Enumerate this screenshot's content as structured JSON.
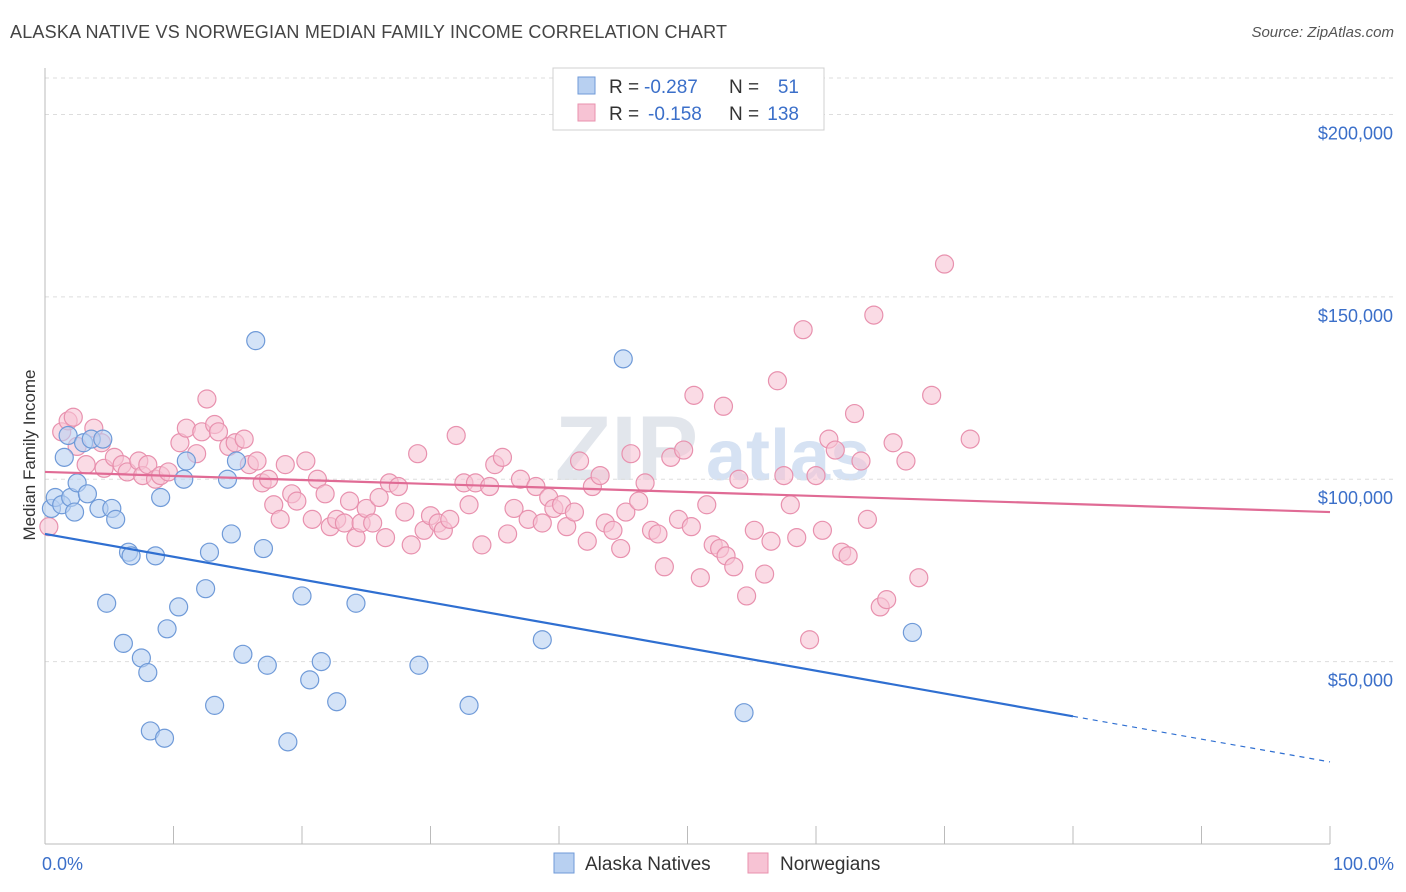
{
  "title": "ALASKA NATIVE VS NORWEGIAN MEDIAN FAMILY INCOME CORRELATION CHART",
  "source": "Source: ZipAtlas.com",
  "watermark": {
    "zip": "ZIP",
    "atlas": "atlas"
  },
  "colors": {
    "blue_fill": "#b8d0f1",
    "blue_stroke": "#6f9ad8",
    "blue_line": "#2f6fd1",
    "pink_fill": "#f7c3d4",
    "pink_stroke": "#e891ae",
    "pink_line": "#e06b95",
    "tick_text": "#3b6fc9",
    "grid": "#dddddd"
  },
  "legend": {
    "rows": [
      {
        "r_label": "R =",
        "r_value": "-0.287",
        "n_label": "N =",
        "n_value": "51"
      },
      {
        "r_label": "R =",
        "r_value": "-0.158",
        "n_label": "N =",
        "n_value": "138"
      }
    ]
  },
  "chart_data": {
    "type": "scatter",
    "title": "ALASKA NATIVE VS NORWEGIAN MEDIAN FAMILY INCOME CORRELATION CHART",
    "xlabel": "",
    "ylabel": "Median Family Income",
    "xlim": [
      0,
      100
    ],
    "ylim": [
      0,
      210000
    ],
    "x_tick_labels": [
      "0.0%",
      "100.0%"
    ],
    "y_ticks": [
      {
        "value": 50000,
        "label": "$50,000"
      },
      {
        "value": 100000,
        "label": "$100,000"
      },
      {
        "value": 150000,
        "label": "$150,000"
      },
      {
        "value": 200000,
        "label": "$200,000"
      }
    ],
    "series": [
      {
        "name": "Alaska Natives",
        "r": -0.287,
        "n": 51,
        "trend": {
          "x0": 0,
          "y0": 85000,
          "x1": 80,
          "y1": 35000,
          "dash_to_x": 100,
          "dash_to_y": 22500
        },
        "points": [
          [
            0.5,
            92000
          ],
          [
            0.8,
            95000
          ],
          [
            1.3,
            93000
          ],
          [
            1.5,
            106000
          ],
          [
            1.8,
            112000
          ],
          [
            2.0,
            95000
          ],
          [
            2.3,
            91000
          ],
          [
            2.5,
            99000
          ],
          [
            3.0,
            110000
          ],
          [
            3.3,
            96000
          ],
          [
            3.6,
            111000
          ],
          [
            4.2,
            92000
          ],
          [
            4.8,
            66000
          ],
          [
            5.2,
            92000
          ],
          [
            5.5,
            89000
          ],
          [
            6.1,
            55000
          ],
          [
            6.5,
            80000
          ],
          [
            6.7,
            79000
          ],
          [
            7.5,
            51000
          ],
          [
            8.0,
            47000
          ],
          [
            8.2,
            31000
          ],
          [
            8.6,
            79000
          ],
          [
            9.0,
            95000
          ],
          [
            9.3,
            29000
          ],
          [
            9.5,
            59000
          ],
          [
            10.4,
            65000
          ],
          [
            10.8,
            100000
          ],
          [
            11.0,
            105000
          ],
          [
            12.8,
            80000
          ],
          [
            12.5,
            70000
          ],
          [
            13.2,
            38000
          ],
          [
            14.2,
            100000
          ],
          [
            14.5,
            85000
          ],
          [
            14.9,
            105000
          ],
          [
            15.4,
            52000
          ],
          [
            16.4,
            138000
          ],
          [
            17.0,
            81000
          ],
          [
            17.3,
            49000
          ],
          [
            18.9,
            28000
          ],
          [
            20.0,
            68000
          ],
          [
            20.6,
            45000
          ],
          [
            21.5,
            50000
          ],
          [
            22.7,
            39000
          ],
          [
            24.2,
            66000
          ],
          [
            29.1,
            49000
          ],
          [
            33.0,
            38000
          ],
          [
            38.7,
            56000
          ],
          [
            45.0,
            133000
          ],
          [
            67.5,
            58000
          ],
          [
            54.4,
            36000
          ],
          [
            4.5,
            111000
          ]
        ]
      },
      {
        "name": "Norwegians",
        "r": -0.158,
        "n": 138,
        "trend": {
          "x0": 0,
          "y0": 102000,
          "x1": 100,
          "y1": 91000
        },
        "points": [
          [
            0.3,
            87000
          ],
          [
            1.3,
            113000
          ],
          [
            1.8,
            116000
          ],
          [
            2.2,
            117000
          ],
          [
            2.5,
            109000
          ],
          [
            3.2,
            104000
          ],
          [
            3.8,
            114000
          ],
          [
            4.4,
            110000
          ],
          [
            4.6,
            103000
          ],
          [
            5.4,
            106000
          ],
          [
            6.0,
            104000
          ],
          [
            6.4,
            102000
          ],
          [
            7.3,
            105000
          ],
          [
            7.6,
            101000
          ],
          [
            8.0,
            104000
          ],
          [
            8.6,
            100000
          ],
          [
            9.0,
            101000
          ],
          [
            9.6,
            102000
          ],
          [
            10.5,
            110000
          ],
          [
            11.0,
            114000
          ],
          [
            11.8,
            107000
          ],
          [
            12.2,
            113000
          ],
          [
            12.6,
            122000
          ],
          [
            13.2,
            115000
          ],
          [
            13.5,
            113000
          ],
          [
            14.3,
            109000
          ],
          [
            14.8,
            110000
          ],
          [
            15.5,
            111000
          ],
          [
            15.9,
            104000
          ],
          [
            16.5,
            105000
          ],
          [
            16.9,
            99000
          ],
          [
            17.4,
            100000
          ],
          [
            17.8,
            93000
          ],
          [
            18.3,
            89000
          ],
          [
            18.7,
            104000
          ],
          [
            19.2,
            96000
          ],
          [
            19.6,
            94000
          ],
          [
            20.3,
            105000
          ],
          [
            20.8,
            89000
          ],
          [
            21.2,
            100000
          ],
          [
            21.8,
            96000
          ],
          [
            22.2,
            87000
          ],
          [
            22.7,
            89000
          ],
          [
            23.3,
            88000
          ],
          [
            23.7,
            94000
          ],
          [
            24.2,
            84000
          ],
          [
            24.6,
            88000
          ],
          [
            25.0,
            92000
          ],
          [
            25.5,
            88000
          ],
          [
            26.0,
            95000
          ],
          [
            26.5,
            84000
          ],
          [
            26.8,
            99000
          ],
          [
            27.5,
            98000
          ],
          [
            28.0,
            91000
          ],
          [
            28.5,
            82000
          ],
          [
            29.0,
            107000
          ],
          [
            29.5,
            86000
          ],
          [
            30.0,
            90000
          ],
          [
            30.6,
            88000
          ],
          [
            31.0,
            86000
          ],
          [
            31.5,
            89000
          ],
          [
            32.0,
            112000
          ],
          [
            32.6,
            99000
          ],
          [
            33.0,
            93000
          ],
          [
            33.5,
            99000
          ],
          [
            34.0,
            82000
          ],
          [
            34.6,
            98000
          ],
          [
            35.0,
            104000
          ],
          [
            35.6,
            106000
          ],
          [
            36.0,
            85000
          ],
          [
            36.5,
            92000
          ],
          [
            37.0,
            100000
          ],
          [
            37.6,
            89000
          ],
          [
            38.2,
            98000
          ],
          [
            38.7,
            88000
          ],
          [
            39.2,
            95000
          ],
          [
            39.6,
            92000
          ],
          [
            40.2,
            93000
          ],
          [
            40.6,
            87000
          ],
          [
            41.2,
            91000
          ],
          [
            41.6,
            105000
          ],
          [
            42.2,
            83000
          ],
          [
            42.6,
            98000
          ],
          [
            43.2,
            101000
          ],
          [
            43.6,
            88000
          ],
          [
            44.2,
            86000
          ],
          [
            44.8,
            81000
          ],
          [
            45.2,
            91000
          ],
          [
            45.6,
            107000
          ],
          [
            46.2,
            94000
          ],
          [
            46.7,
            99000
          ],
          [
            47.2,
            86000
          ],
          [
            47.7,
            85000
          ],
          [
            48.2,
            76000
          ],
          [
            48.7,
            106000
          ],
          [
            49.3,
            89000
          ],
          [
            49.7,
            108000
          ],
          [
            50.3,
            87000
          ],
          [
            51.0,
            73000
          ],
          [
            51.5,
            93000
          ],
          [
            52.0,
            82000
          ],
          [
            52.5,
            81000
          ],
          [
            53.0,
            79000
          ],
          [
            53.6,
            76000
          ],
          [
            54.0,
            100000
          ],
          [
            54.6,
            68000
          ],
          [
            55.2,
            86000
          ],
          [
            56.0,
            74000
          ],
          [
            56.5,
            83000
          ],
          [
            57.0,
            127000
          ],
          [
            57.5,
            101000
          ],
          [
            58.0,
            93000
          ],
          [
            58.5,
            84000
          ],
          [
            59.0,
            141000
          ],
          [
            59.5,
            56000
          ],
          [
            60.0,
            101000
          ],
          [
            60.5,
            86000
          ],
          [
            61.0,
            111000
          ],
          [
            61.5,
            108000
          ],
          [
            62.0,
            80000
          ],
          [
            62.5,
            79000
          ],
          [
            63.0,
            118000
          ],
          [
            63.5,
            105000
          ],
          [
            64.0,
            89000
          ],
          [
            64.5,
            145000
          ],
          [
            65.0,
            65000
          ],
          [
            65.5,
            67000
          ],
          [
            66.0,
            110000
          ],
          [
            67.0,
            105000
          ],
          [
            68.0,
            73000
          ],
          [
            69.0,
            123000
          ],
          [
            70.0,
            159000
          ],
          [
            72.0,
            111000
          ],
          [
            50.5,
            123000
          ],
          [
            52.8,
            120000
          ]
        ]
      }
    ]
  },
  "bottom_legend": {
    "blue_label": "Alaska Natives",
    "pink_label": "Norwegians"
  }
}
